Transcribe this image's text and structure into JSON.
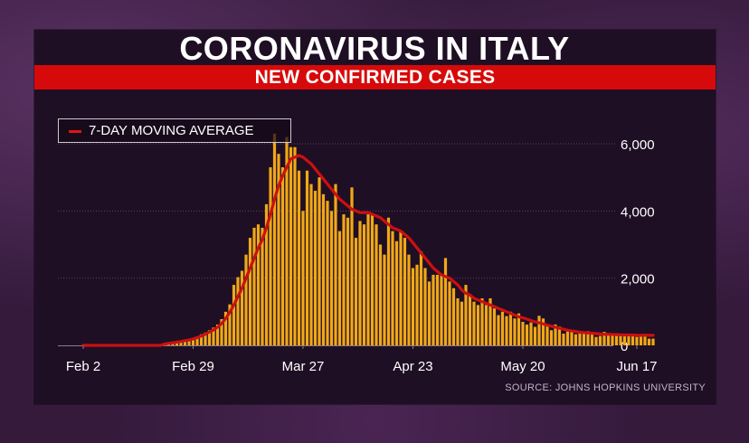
{
  "title": "CORONAVIRUS IN ITALY",
  "subtitle": "NEW CONFIRMED CASES",
  "source": "SOURCE: JOHNS HOPKINS UNIVERSITY",
  "colors": {
    "bar": "#f0a818",
    "moving_average": "#cc1010",
    "subtitle_band": "#d60a0a",
    "panel": "#1f0f24",
    "gridline": "#5a4560"
  },
  "chart_data": {
    "type": "bar",
    "title": "CORONAVIRUS IN ITALY",
    "subtitle": "NEW CONFIRMED CASES",
    "x_start_date": "2020-02-02",
    "x_tick_labels": [
      "Feb 2",
      "Feb 29",
      "Mar 27",
      "Apr 23",
      "May 20",
      "Jun 17"
    ],
    "x_tick_dates": [
      "2020-02-02",
      "2020-02-29",
      "2020-03-27",
      "2020-04-23",
      "2020-05-20",
      "2020-06-17"
    ],
    "y_ticks": [
      0,
      2000,
      4000,
      6000
    ],
    "y_tick_labels": [
      "0",
      "2,000",
      "4,000",
      "6,000"
    ],
    "ylim": [
      0,
      6200
    ],
    "y_axis_side": "right",
    "grid": "horizontal",
    "legend": {
      "position": "top-left",
      "entries": [
        "7-DAY MOVING AVERAGE"
      ]
    },
    "daily_values": [
      0,
      0,
      0,
      0,
      0,
      0,
      0,
      0,
      0,
      0,
      0,
      0,
      0,
      0,
      0,
      0,
      0,
      0,
      0,
      0,
      60,
      75,
      95,
      110,
      140,
      170,
      180,
      220,
      260,
      330,
      380,
      450,
      530,
      620,
      780,
      1000,
      1220,
      1800,
      2030,
      2220,
      2700,
      3200,
      3500,
      3600,
      3500,
      4200,
      5300,
      6300,
      5700,
      5300,
      6200,
      5900,
      5900,
      5200,
      4000,
      5200,
      4800,
      4600,
      5000,
      4500,
      4300,
      4000,
      4800,
      3400,
      3900,
      3800,
      4700,
      3200,
      3700,
      3600,
      3900,
      3900,
      3600,
      3000,
      2700,
      3800,
      3400,
      3100,
      3400,
      3200,
      2700,
      2300,
      2400,
      2800,
      2300,
      1900,
      2100,
      2100,
      2100,
      2600,
      1900,
      1700,
      1400,
      1300,
      1800,
      1500,
      1300,
      1200,
      1400,
      1200,
      1400,
      1100,
      900,
      1000,
      870,
      1000,
      800,
      950,
      700,
      620,
      680,
      550,
      880,
      800,
      590,
      450,
      620,
      560,
      350,
      450,
      420,
      330,
      380,
      380,
      420,
      350,
      250,
      280,
      400,
      350,
      300,
      300,
      280,
      330,
      330,
      320,
      250,
      300,
      340,
      200,
      200
    ],
    "series": [
      {
        "name": "7-DAY MOVING AVERAGE",
        "type": "line",
        "values": [
          0,
          0,
          0,
          0,
          0,
          0,
          0,
          0,
          0,
          0,
          0,
          0,
          0,
          0,
          0,
          0,
          0,
          0,
          0,
          0,
          40,
          60,
          75,
          95,
          115,
          140,
          160,
          190,
          230,
          280,
          330,
          400,
          460,
          540,
          650,
          800,
          980,
          1200,
          1450,
          1700,
          2000,
          2300,
          2600,
          2900,
          3150,
          3500,
          3900,
          4350,
          4750,
          5050,
          5300,
          5550,
          5600,
          5650,
          5600,
          5500,
          5400,
          5250,
          5100,
          4950,
          4800,
          4650,
          4500,
          4350,
          4250,
          4150,
          4050,
          4000,
          3950,
          3950,
          3950,
          3900,
          3850,
          3800,
          3700,
          3600,
          3500,
          3450,
          3400,
          3300,
          3200,
          3050,
          2900,
          2750,
          2600,
          2450,
          2300,
          2200,
          2100,
          2050,
          2000,
          1900,
          1800,
          1650,
          1550,
          1500,
          1400,
          1350,
          1300,
          1250,
          1200,
          1150,
          1100,
          1050,
          1000,
          950,
          900,
          850,
          820,
          780,
          740,
          700,
          670,
          640,
          600,
          570,
          540,
          510,
          480,
          450,
          430,
          410,
          390,
          380,
          370,
          360,
          350,
          340,
          330,
          330,
          325,
          320,
          315,
          310,
          310,
          305,
          300,
          300,
          300,
          300,
          300
        ]
      }
    ]
  }
}
